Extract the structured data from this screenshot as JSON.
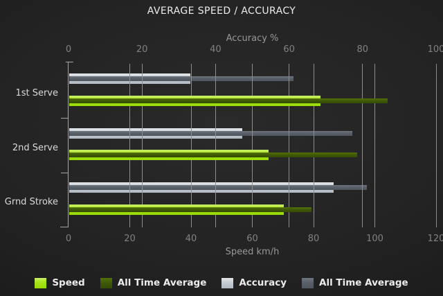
{
  "chart_data": {
    "type": "bar",
    "orientation": "horizontal",
    "title": "AVERAGE SPEED / ACCURACY",
    "categories": [
      "1st Serve",
      "2nd Serve",
      "Grnd Stroke"
    ],
    "series": [
      {
        "name": "Speed",
        "axis": "bottom",
        "color": "#a6e41c",
        "values": [
          82,
          65,
          70
        ]
      },
      {
        "name": "All Time Average",
        "axis": "bottom",
        "color": "#3d5706",
        "values": [
          104,
          94,
          79
        ]
      },
      {
        "name": "Accuracy",
        "axis": "top",
        "color": "#bfc6cd",
        "values": [
          33,
          47,
          72
        ]
      },
      {
        "name": "All Time Average",
        "axis": "top",
        "color": "#565d66",
        "values": [
          61,
          77,
          81
        ]
      }
    ],
    "axes": {
      "top": {
        "label": "Accuracy %",
        "min": 0,
        "max": 100,
        "ticks": [
          0,
          20,
          40,
          60,
          80,
          100
        ]
      },
      "bottom": {
        "label": "Speed km/h",
        "min": 0,
        "max": 120,
        "ticks": [
          0,
          20,
          40,
          60,
          80,
          100,
          120
        ]
      }
    },
    "legend_position": "bottom",
    "grid": true,
    "colors": {
      "background": "#1e1e1e",
      "gridline": "#8e8e8e",
      "axis_text": "#828282",
      "axis_title_text": "#989898",
      "category_text": "#dadada",
      "title_text": "#ececec"
    }
  }
}
